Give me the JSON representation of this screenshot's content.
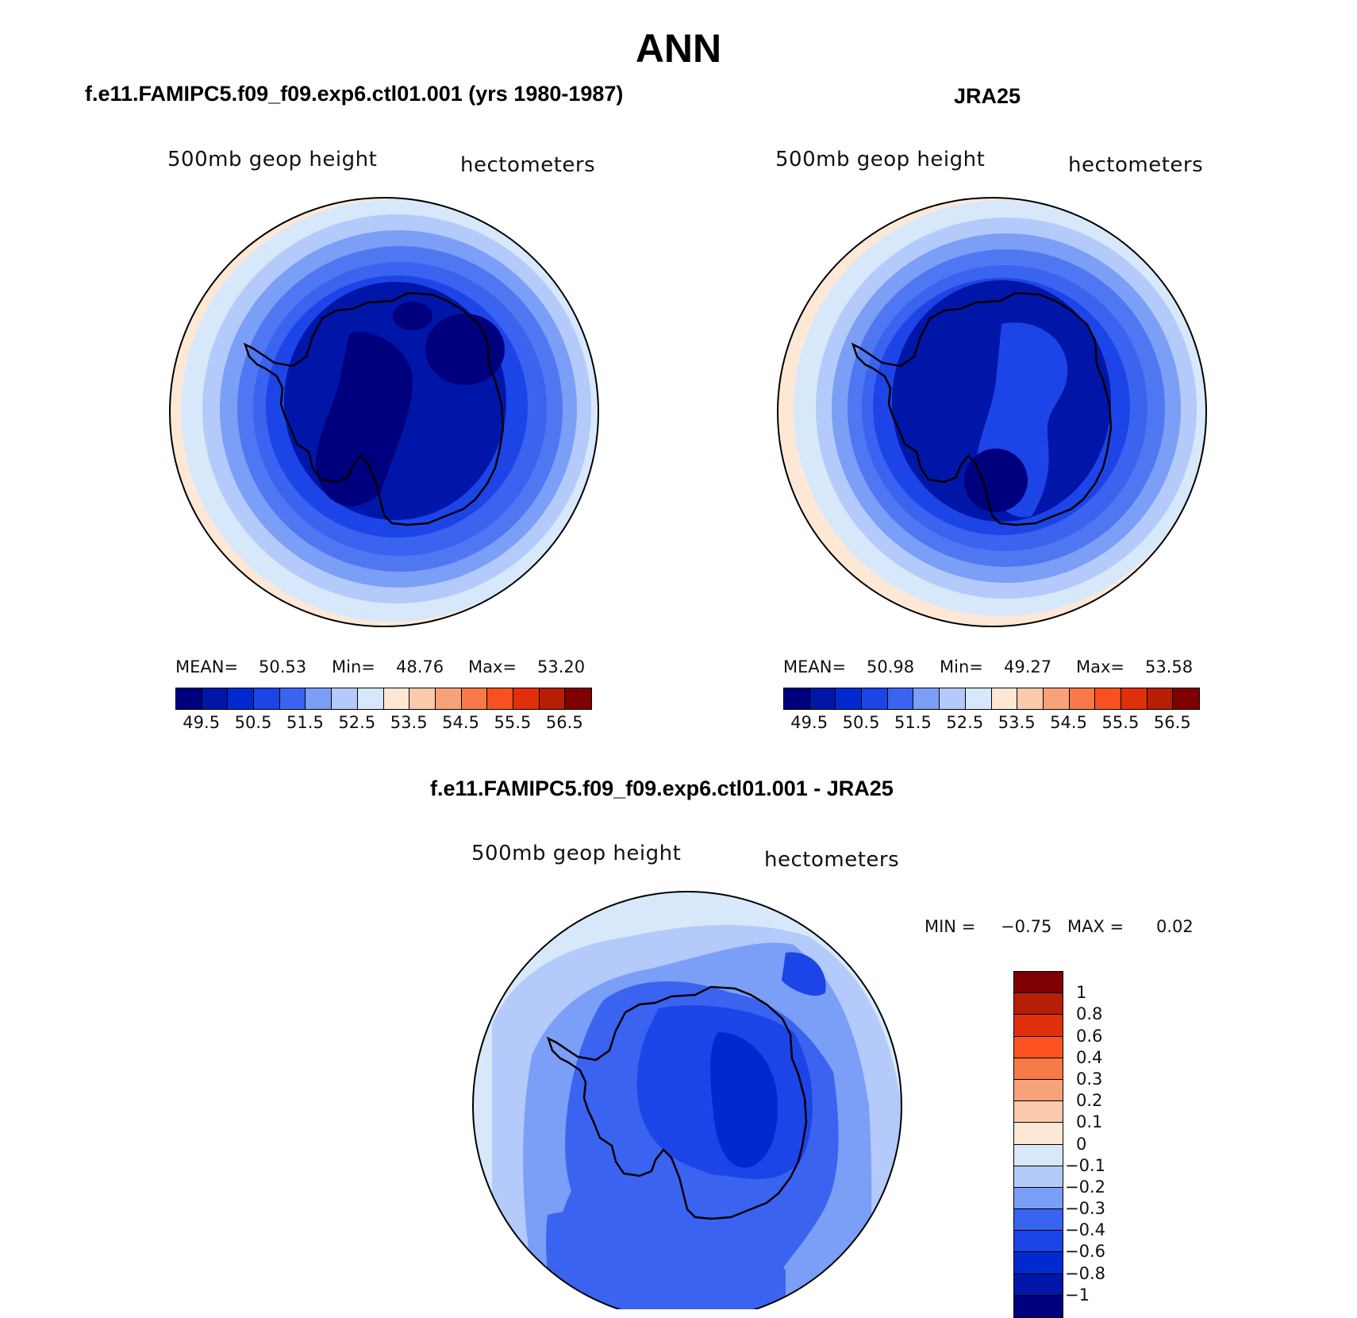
{
  "title": "ANN",
  "panels": [
    {
      "title": "f.e11.FAMIPC5.f09_f09.exp6.ctl01.001 (yrs 1980-1987)",
      "variable": "500mb  geop  height",
      "units": "hectometers",
      "stats": {
        "mean_label": "MEAN=",
        "mean": "50.53",
        "min_label": "Min=",
        "min": "48.76",
        "max_label": "Max=",
        "max": "53.20"
      }
    },
    {
      "title": "JRA25",
      "variable": "500mb  geop  height",
      "units": "hectometers",
      "stats": {
        "mean_label": "MEAN=",
        "mean": "50.98",
        "min_label": "Min=",
        "min": "49.27",
        "max_label": "Max=",
        "max": "53.58"
      }
    },
    {
      "title": "f.e11.FAMIPC5.f09_f09.exp6.ctl01.001 - JRA25",
      "variable": "500mb  geop  height",
      "units": "hectometers",
      "stats": {
        "min_label": "MIN =",
        "min": "−0.75",
        "max_label": "MAX =",
        "max": "0.02"
      }
    }
  ],
  "colorbar_abs": {
    "colors": [
      "#00007f",
      "#0016a8",
      "#002ad0",
      "#1d44e6",
      "#3a63f0",
      "#7b9ef6",
      "#b4cafa",
      "#d8e8fb",
      "#fde8d6",
      "#fbc9ac",
      "#f8a27a",
      "#f87a48",
      "#f8501e",
      "#e0300a",
      "#b81e06",
      "#7f0000"
    ],
    "ticks": [
      "49.5",
      "50.5",
      "51.5",
      "52.5",
      "53.5",
      "54.5",
      "55.5",
      "56.5"
    ]
  },
  "colorbar_diff": {
    "colors": [
      "#7f0000",
      "#b81e06",
      "#e0300a",
      "#ff5422",
      "#f87a48",
      "#f8a27a",
      "#fbc9ac",
      "#fde8d6",
      "#d8e8fb",
      "#b4cafa",
      "#7b9ef6",
      "#3a63f0",
      "#1d44e6",
      "#002ad0",
      "#0016a8",
      "#00007f"
    ],
    "ticks": [
      "1",
      "0.8",
      "0.6",
      "0.4",
      "0.3",
      "0.2",
      "0.1",
      "0",
      "−0.1",
      "−0.2",
      "−0.3",
      "−0.4",
      "−0.6",
      "−0.8",
      "−1"
    ]
  },
  "map_palette": {
    "abs": [
      "#fde8d6",
      "#d8e8fb",
      "#b4cafa",
      "#7b9ef6",
      "#4f77f2",
      "#3a63f0",
      "#1d44e6",
      "#002ad0",
      "#0016a8",
      "#00007f"
    ],
    "diff": [
      "#fde8d6",
      "#d8e8fb",
      "#b4cafa",
      "#7b9ef6",
      "#3a63f0",
      "#1d44e6",
      "#002ad0"
    ]
  }
}
